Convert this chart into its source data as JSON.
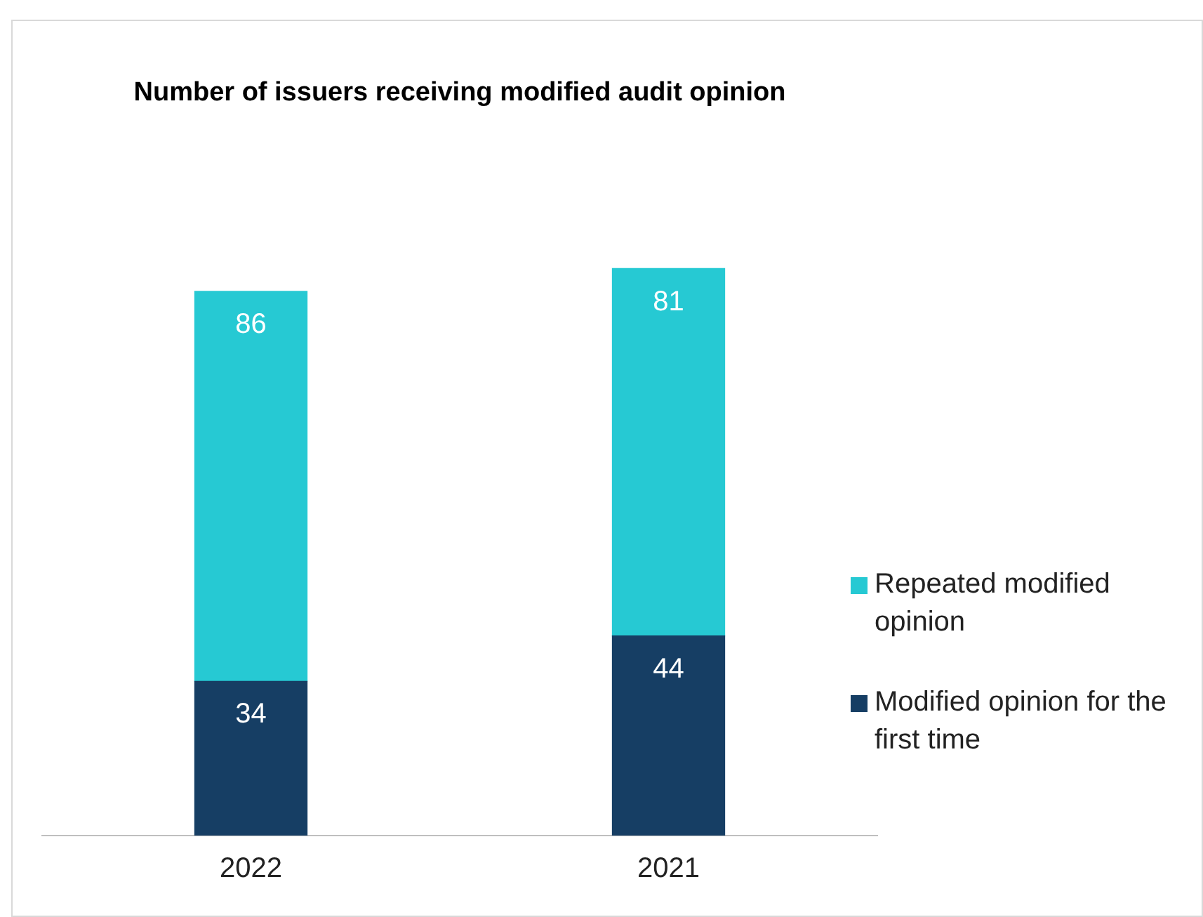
{
  "chart_data": {
    "type": "bar",
    "title": "Number of issuers receiving modified audit opinion",
    "categories": [
      "2022",
      "2021"
    ],
    "stacked": true,
    "data_labels": true,
    "legend": "right",
    "grid": false,
    "series": [
      {
        "name": "Modified opinion for the first time",
        "color": "#163e64",
        "values": [
          34,
          44
        ]
      },
      {
        "name": "Repeated modified opinion",
        "color": "#26c9d3",
        "values": [
          86,
          81
        ]
      }
    ]
  }
}
